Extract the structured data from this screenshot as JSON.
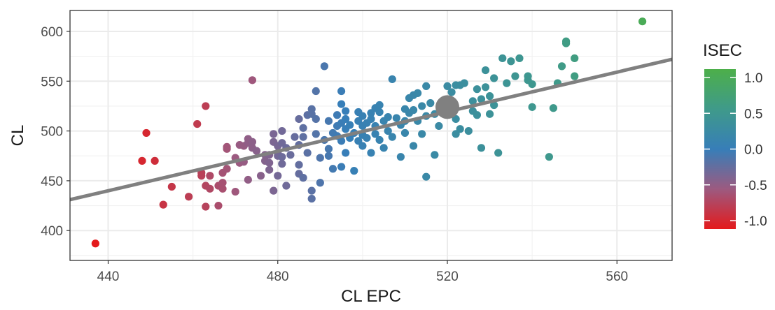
{
  "chart_data": {
    "type": "scatter",
    "xlabel": "CL  EPC",
    "ylabel": "CL",
    "xlim": [
      431,
      573
    ],
    "ylim": [
      370,
      621
    ],
    "x_ticks": [
      440,
      480,
      520,
      560
    ],
    "y_ticks": [
      400,
      450,
      500,
      550,
      600
    ],
    "grid": true,
    "color_legend": {
      "title": "ISEC",
      "ticks": [
        1.0,
        0.5,
        0.0,
        -0.5,
        -1.0
      ],
      "tick_labels": [
        "1.0",
        "0.5",
        "0.0",
        "-0.5",
        "-1.0"
      ],
      "range": [
        -1.0,
        1.0
      ],
      "colors": {
        "low": "#e41a1c",
        "mid": "#377eb8",
        "high": "#4daf4a",
        "midlow": "#8c6a9c"
      },
      "placement": "right"
    },
    "regression_line": {
      "color": "#808080",
      "points": [
        [
          431,
          431
        ],
        [
          573,
          572
        ]
      ]
    },
    "highlight_point": {
      "x": 520,
      "y": 524,
      "color": "#808080"
    },
    "points": [
      [
        437,
        387,
        -1.0
      ],
      [
        448,
        470,
        -0.9
      ],
      [
        449,
        498,
        -0.9
      ],
      [
        451,
        470,
        -0.85
      ],
      [
        453,
        426,
        -0.8
      ],
      [
        455,
        444,
        -0.78
      ],
      [
        459,
        434,
        -0.72
      ],
      [
        461,
        507,
        -0.75
      ],
      [
        462,
        458,
        -0.7
      ],
      [
        462,
        455,
        -0.7
      ],
      [
        463,
        424,
        -0.68
      ],
      [
        463,
        445,
        -0.66
      ],
      [
        463,
        525,
        -0.72
      ],
      [
        464,
        442,
        -0.64
      ],
      [
        464,
        455,
        -0.63
      ],
      [
        466,
        445,
        -0.6
      ],
      [
        466,
        425,
        -0.6
      ],
      [
        467,
        442,
        -0.58
      ],
      [
        467,
        448,
        -0.57
      ],
      [
        467,
        458,
        -0.56
      ],
      [
        468,
        462,
        -0.55
      ],
      [
        468,
        482,
        -0.55
      ],
      [
        468,
        484,
        -0.54
      ],
      [
        470,
        439,
        -0.52
      ],
      [
        470,
        473,
        -0.5
      ],
      [
        471,
        468,
        -0.5
      ],
      [
        471,
        486,
        -0.48
      ],
      [
        472,
        485,
        -0.47
      ],
      [
        472,
        469,
        -0.47
      ],
      [
        473,
        451,
        -0.45
      ],
      [
        473,
        488,
        -0.44
      ],
      [
        473,
        492,
        -0.44
      ],
      [
        474,
        551,
        -0.52
      ],
      [
        474,
        483,
        -0.42
      ],
      [
        474,
        489,
        -0.42
      ],
      [
        475,
        480,
        -0.4
      ],
      [
        476,
        455,
        -0.4
      ],
      [
        477,
        476,
        -0.38
      ],
      [
        477,
        470,
        -0.38
      ],
      [
        478,
        476,
        -0.36
      ],
      [
        478,
        468,
        -0.36
      ],
      [
        478,
        461,
        -0.35
      ],
      [
        479,
        489,
        -0.34
      ],
      [
        479,
        497,
        -0.33
      ],
      [
        479,
        440,
        -0.34
      ],
      [
        480,
        485,
        -0.32
      ],
      [
        480,
        478,
        -0.31
      ],
      [
        480,
        475,
        -0.3
      ],
      [
        480,
        455,
        -0.3
      ],
      [
        481,
        500,
        -0.29
      ],
      [
        481,
        488,
        -0.28
      ],
      [
        481,
        474,
        -0.27
      ],
      [
        481,
        467,
        -0.28
      ],
      [
        482,
        483,
        -0.26
      ],
      [
        482,
        445,
        -0.28
      ],
      [
        483,
        476,
        -0.25
      ],
      [
        484,
        494,
        -0.24
      ],
      [
        485,
        512,
        -0.24
      ],
      [
        485,
        486,
        -0.22
      ],
      [
        485,
        466,
        -0.22
      ],
      [
        485,
        457,
        -0.23
      ],
      [
        486,
        503,
        -0.2
      ],
      [
        486,
        494,
        -0.2
      ],
      [
        486,
        453,
        -0.2
      ],
      [
        487,
        516,
        -0.19
      ],
      [
        487,
        478,
        -0.18
      ],
      [
        488,
        522,
        -0.17
      ],
      [
        488,
        517,
        -0.17
      ],
      [
        488,
        440,
        -0.18
      ],
      [
        488,
        432,
        -0.18
      ],
      [
        489,
        512,
        -0.15
      ],
      [
        489,
        540,
        -0.14
      ],
      [
        489,
        497,
        -0.14
      ],
      [
        490,
        473,
        -0.12
      ],
      [
        490,
        448,
        -0.12
      ],
      [
        491,
        565,
        -0.1
      ],
      [
        491,
        491,
        -0.1
      ],
      [
        492,
        510,
        -0.08
      ],
      [
        492,
        482,
        -0.08
      ],
      [
        492,
        475,
        -0.08
      ],
      [
        493,
        498,
        -0.06
      ],
      [
        493,
        462,
        -0.06
      ],
      [
        494,
        516,
        -0.04
      ],
      [
        494,
        505,
        -0.04
      ],
      [
        494,
        495,
        -0.04
      ],
      [
        495,
        508,
        -0.02
      ],
      [
        495,
        490,
        -0.02
      ],
      [
        495,
        464,
        -0.02
      ],
      [
        495,
        540,
        -0.02
      ],
      [
        495,
        527,
        0.0
      ],
      [
        496,
        520,
        0.0
      ],
      [
        496,
        512,
        0.0
      ],
      [
        496,
        502,
        0.0
      ],
      [
        496,
        478,
        0.0
      ],
      [
        497,
        506,
        0.02
      ],
      [
        497,
        493,
        0.02
      ],
      [
        498,
        498,
        0.02
      ],
      [
        498,
        460,
        0.03
      ],
      [
        499,
        519,
        0.04
      ],
      [
        499,
        510,
        0.04
      ],
      [
        499,
        490,
        0.04
      ],
      [
        500,
        515,
        0.05
      ],
      [
        500,
        505,
        0.05
      ],
      [
        500,
        496,
        0.05
      ],
      [
        500,
        485,
        0.05
      ],
      [
        501,
        508,
        0.06
      ],
      [
        501,
        493,
        0.06
      ],
      [
        502,
        518,
        0.07
      ],
      [
        502,
        512,
        0.07
      ],
      [
        502,
        478,
        0.07
      ],
      [
        503,
        505,
        0.08
      ],
      [
        503,
        497,
        0.08
      ],
      [
        503,
        523,
        0.08
      ],
      [
        504,
        526,
        0.09
      ],
      [
        504,
        519,
        0.09
      ],
      [
        504,
        491,
        0.09
      ],
      [
        505,
        510,
        0.1
      ],
      [
        505,
        483,
        0.1
      ],
      [
        506,
        514,
        0.11
      ],
      [
        506,
        500,
        0.11
      ],
      [
        507,
        552,
        0.11
      ],
      [
        507,
        494,
        0.12
      ],
      [
        508,
        513,
        0.12
      ],
      [
        509,
        506,
        0.13
      ],
      [
        509,
        474,
        0.13
      ],
      [
        510,
        522,
        0.14
      ],
      [
        510,
        510,
        0.14
      ],
      [
        510,
        498,
        0.14
      ],
      [
        511,
        533,
        0.15
      ],
      [
        511,
        518,
        0.15
      ],
      [
        512,
        536,
        0.16
      ],
      [
        512,
        521,
        0.16
      ],
      [
        512,
        485,
        0.16
      ],
      [
        513,
        538,
        0.17
      ],
      [
        513,
        510,
        0.17
      ],
      [
        514,
        525,
        0.18
      ],
      [
        514,
        497,
        0.18
      ],
      [
        515,
        545,
        0.19
      ],
      [
        515,
        515,
        0.19
      ],
      [
        515,
        454,
        0.19
      ],
      [
        516,
        528,
        0.2
      ],
      [
        517,
        517,
        0.21
      ],
      [
        517,
        476,
        0.21
      ],
      [
        518,
        505,
        0.22
      ],
      [
        519,
        520,
        0.23
      ],
      [
        520,
        545,
        0.24
      ],
      [
        520,
        530,
        0.24
      ],
      [
        521,
        539,
        0.25
      ],
      [
        522,
        546,
        0.26
      ],
      [
        522,
        512,
        0.26
      ],
      [
        522,
        497,
        0.26
      ],
      [
        523,
        546,
        0.27
      ],
      [
        523,
        502,
        0.27
      ],
      [
        524,
        548,
        0.28
      ],
      [
        525,
        500,
        0.29
      ],
      [
        526,
        530,
        0.3
      ],
      [
        526,
        520,
        0.3
      ],
      [
        527,
        542,
        0.32
      ],
      [
        527,
        516,
        0.32
      ],
      [
        528,
        532,
        0.33
      ],
      [
        528,
        483,
        0.33
      ],
      [
        529,
        561,
        0.34
      ],
      [
        529,
        544,
        0.34
      ],
      [
        530,
        535,
        0.35
      ],
      [
        530,
        517,
        0.35
      ],
      [
        531,
        526,
        0.36
      ],
      [
        531,
        553,
        0.36
      ],
      [
        532,
        478,
        0.37
      ],
      [
        533,
        573,
        0.38
      ],
      [
        534,
        548,
        0.39
      ],
      [
        535,
        570,
        0.4
      ],
      [
        536,
        555,
        0.41
      ],
      [
        537,
        573,
        0.42
      ],
      [
        539,
        551,
        0.44
      ],
      [
        539,
        555,
        0.44
      ],
      [
        540,
        524,
        0.45
      ],
      [
        540,
        547,
        0.45
      ],
      [
        544,
        474,
        0.47
      ],
      [
        545,
        523,
        0.49
      ],
      [
        546,
        548,
        0.5
      ],
      [
        547,
        565,
        0.52
      ],
      [
        548,
        588,
        0.55
      ],
      [
        548,
        590,
        0.55
      ],
      [
        550,
        555,
        0.56
      ],
      [
        550,
        573,
        0.57
      ],
      [
        566,
        610,
        0.9
      ]
    ]
  }
}
